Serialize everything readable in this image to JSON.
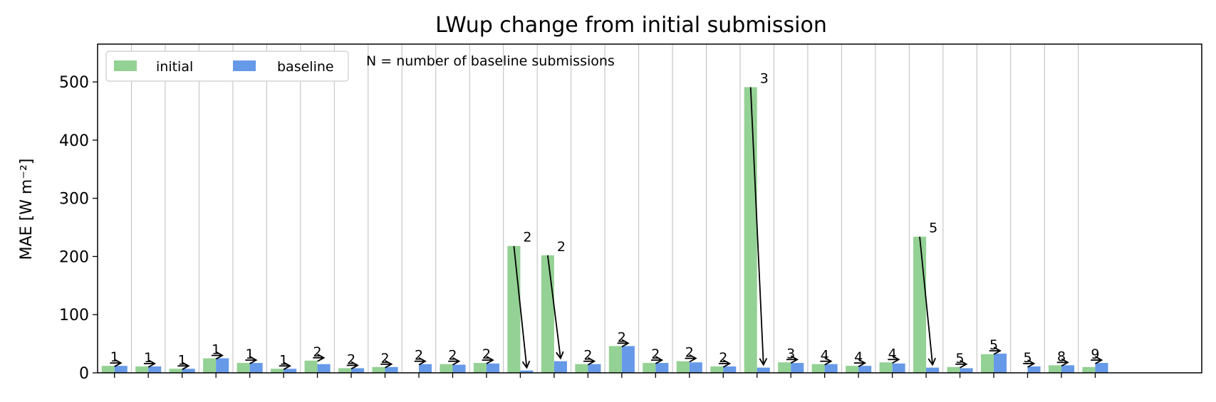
{
  "chart_data": {
    "type": "bar",
    "title": "LWup change from initial submission",
    "ylabel": "MAE [W m⁻²]",
    "xlabel": "",
    "ylim": [
      0,
      565
    ],
    "yticks": [
      0,
      100,
      200,
      300,
      400,
      500
    ],
    "grid": "vertical lines between groups",
    "legend_position": "top-left",
    "annotation": "N = number of baseline submissions",
    "series": [
      {
        "name": "initial",
        "color": "#94d194",
        "values": [
          12,
          11,
          7,
          25,
          17,
          7,
          21,
          8,
          10,
          0,
          15,
          17,
          218,
          202,
          15,
          46,
          17,
          20,
          11,
          491,
          18,
          15,
          12,
          18,
          234,
          10,
          32,
          0,
          13,
          10
        ]
      },
      {
        "name": "baseline",
        "color": "#6699e8",
        "values": [
          12,
          11,
          7,
          25,
          17,
          7,
          15,
          8,
          10,
          15,
          14,
          16,
          4,
          20,
          15,
          46,
          17,
          18,
          11,
          9,
          17,
          15,
          12,
          16,
          9,
          8,
          33,
          11,
          13,
          17
        ]
      }
    ],
    "n_labels": [
      "1",
      "1",
      "1",
      "1",
      "1",
      "1",
      "2",
      "2",
      "2",
      "2",
      "2",
      "2",
      "2",
      "2",
      "2",
      "2",
      "2",
      "2",
      "2",
      "3",
      "3",
      "4",
      "4",
      "4",
      "5",
      "5",
      "5",
      "5",
      "8",
      "9"
    ]
  }
}
